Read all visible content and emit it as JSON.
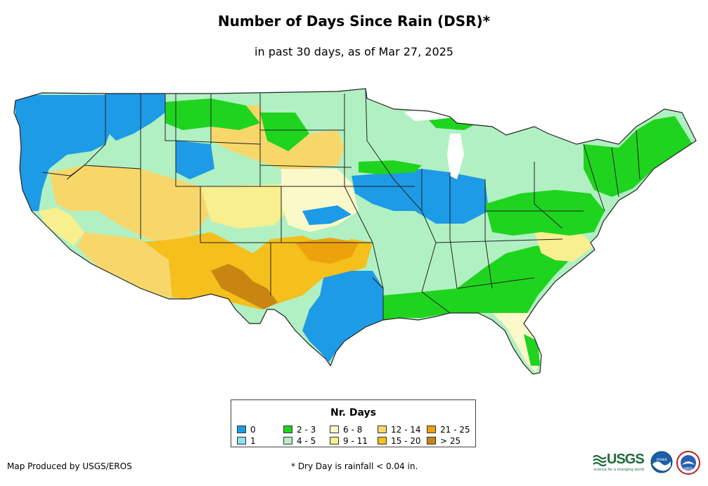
{
  "header": {
    "title": "Number of Days Since Rain (DSR)*",
    "subtitle": "in past 30 days, as of Mar 27, 2025"
  },
  "legend": {
    "title": "Nr. Days",
    "items": [
      {
        "label": "0",
        "color": "#1e9be6"
      },
      {
        "label": "1",
        "color": "#8fdcf3"
      },
      {
        "label": "2 - 3",
        "color": "#1fd41f"
      },
      {
        "label": "4 - 5",
        "color": "#b1f0c3"
      },
      {
        "label": "6 - 8",
        "color": "#fbf8c9"
      },
      {
        "label": "9 - 11",
        "color": "#f8ef8e"
      },
      {
        "label": "12 - 14",
        "color": "#f8d76a"
      },
      {
        "label": "15 - 20",
        "color": "#f5bf1c"
      },
      {
        "label": "21 - 25",
        "color": "#eca20c"
      },
      {
        "label": "> 25",
        "color": "#c98512"
      }
    ]
  },
  "footer": {
    "credit": "Map Produced by USGS/EROS",
    "footnote": "* Dry Day is rainfall < 0.04 in."
  },
  "logos": {
    "usgs_name": "USGS",
    "usgs_tagline": "science for a changing world",
    "noaa": "noaa",
    "nws": "NWS"
  },
  "colors": {
    "border": "#222222",
    "logo_green": "#1d6b3a",
    "noaa_blue": "#1a5fa8"
  }
}
